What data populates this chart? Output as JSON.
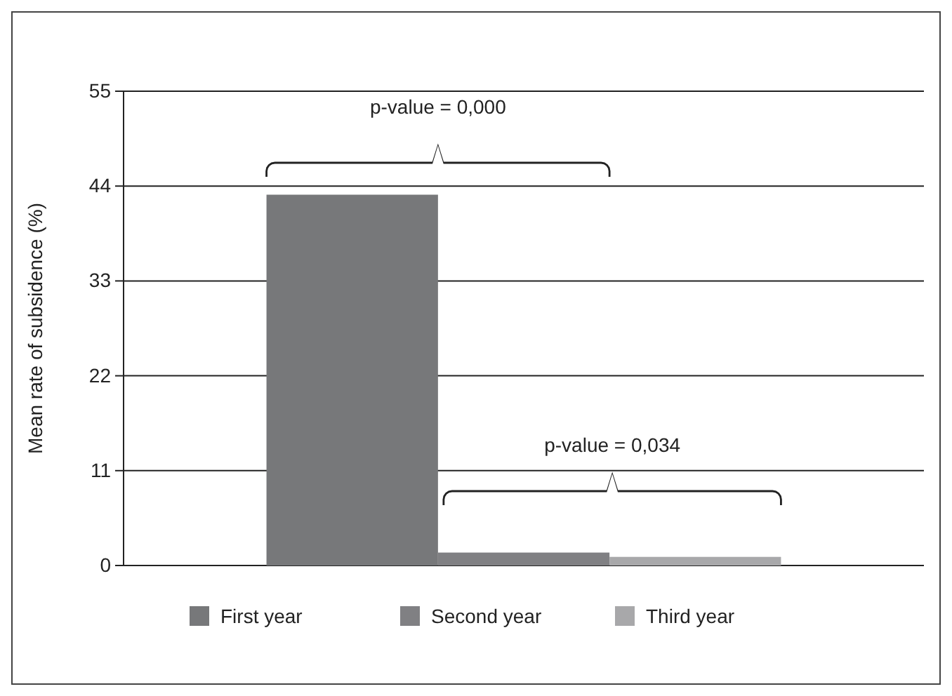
{
  "chart_data": {
    "type": "bar",
    "ylabel": "Mean rate of subsidence (%)",
    "categories": [
      null
    ],
    "series": [
      {
        "name": "First year",
        "color": "#77787a",
        "values": [
          43
        ]
      },
      {
        "name": "Second year",
        "color": "#808083",
        "values": [
          1.5
        ]
      },
      {
        "name": "Third year",
        "color": "#a8a8aa",
        "values": [
          1.0
        ]
      }
    ],
    "ylim": [
      0,
      55
    ],
    "yticks": [
      0,
      11,
      22,
      33,
      44,
      55
    ],
    "grid": "y",
    "legend": "bottom",
    "annotations": [
      "p-value = 0,000",
      "p-value = 0,034"
    ]
  }
}
